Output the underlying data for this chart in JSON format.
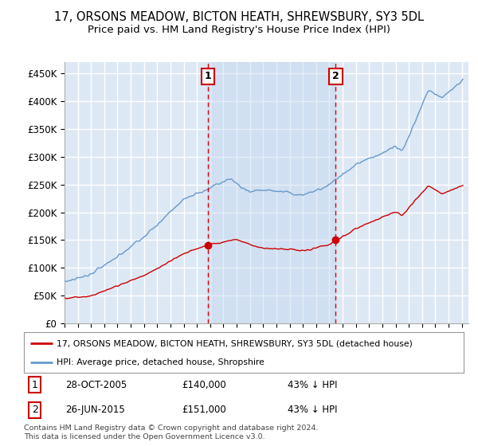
{
  "title": "17, ORSONS MEADOW, BICTON HEATH, SHREWSBURY, SY3 5DL",
  "subtitle": "Price paid vs. HM Land Registry's House Price Index (HPI)",
  "ylabel_ticks": [
    "£0",
    "£50K",
    "£100K",
    "£150K",
    "£200K",
    "£250K",
    "£300K",
    "£350K",
    "£400K",
    "£450K"
  ],
  "ytick_values": [
    0,
    50000,
    100000,
    150000,
    200000,
    250000,
    300000,
    350000,
    400000,
    450000
  ],
  "ylim": [
    0,
    470000
  ],
  "xlim_start": 1995.0,
  "xlim_end": 2025.5,
  "background_color": "#dde8f5",
  "grid_color": "#ffffff",
  "red_line_color": "#cc0000",
  "blue_line_color": "#6699cc",
  "shade_color": "#ccddf0",
  "marker1_x": 2005.82,
  "marker1_y": 140000,
  "marker2_x": 2015.48,
  "marker2_y": 151000,
  "vline_color": "#dd0000",
  "legend_red_label": "17, ORSONS MEADOW, BICTON HEATH, SHREWSBURY, SY3 5DL (detached house)",
  "legend_blue_label": "HPI: Average price, detached house, Shropshire",
  "ann1_label": "1",
  "ann2_label": "2",
  "ann1_date": "28-OCT-2005",
  "ann1_price": "£140,000",
  "ann1_hpi": "43% ↓ HPI",
  "ann2_date": "26-JUN-2015",
  "ann2_price": "£151,000",
  "ann2_hpi": "43% ↓ HPI",
  "footer": "Contains HM Land Registry data © Crown copyright and database right 2024.\nThis data is licensed under the Open Government Licence v3.0.",
  "title_fontsize": 10.5,
  "subtitle_fontsize": 9.5
}
